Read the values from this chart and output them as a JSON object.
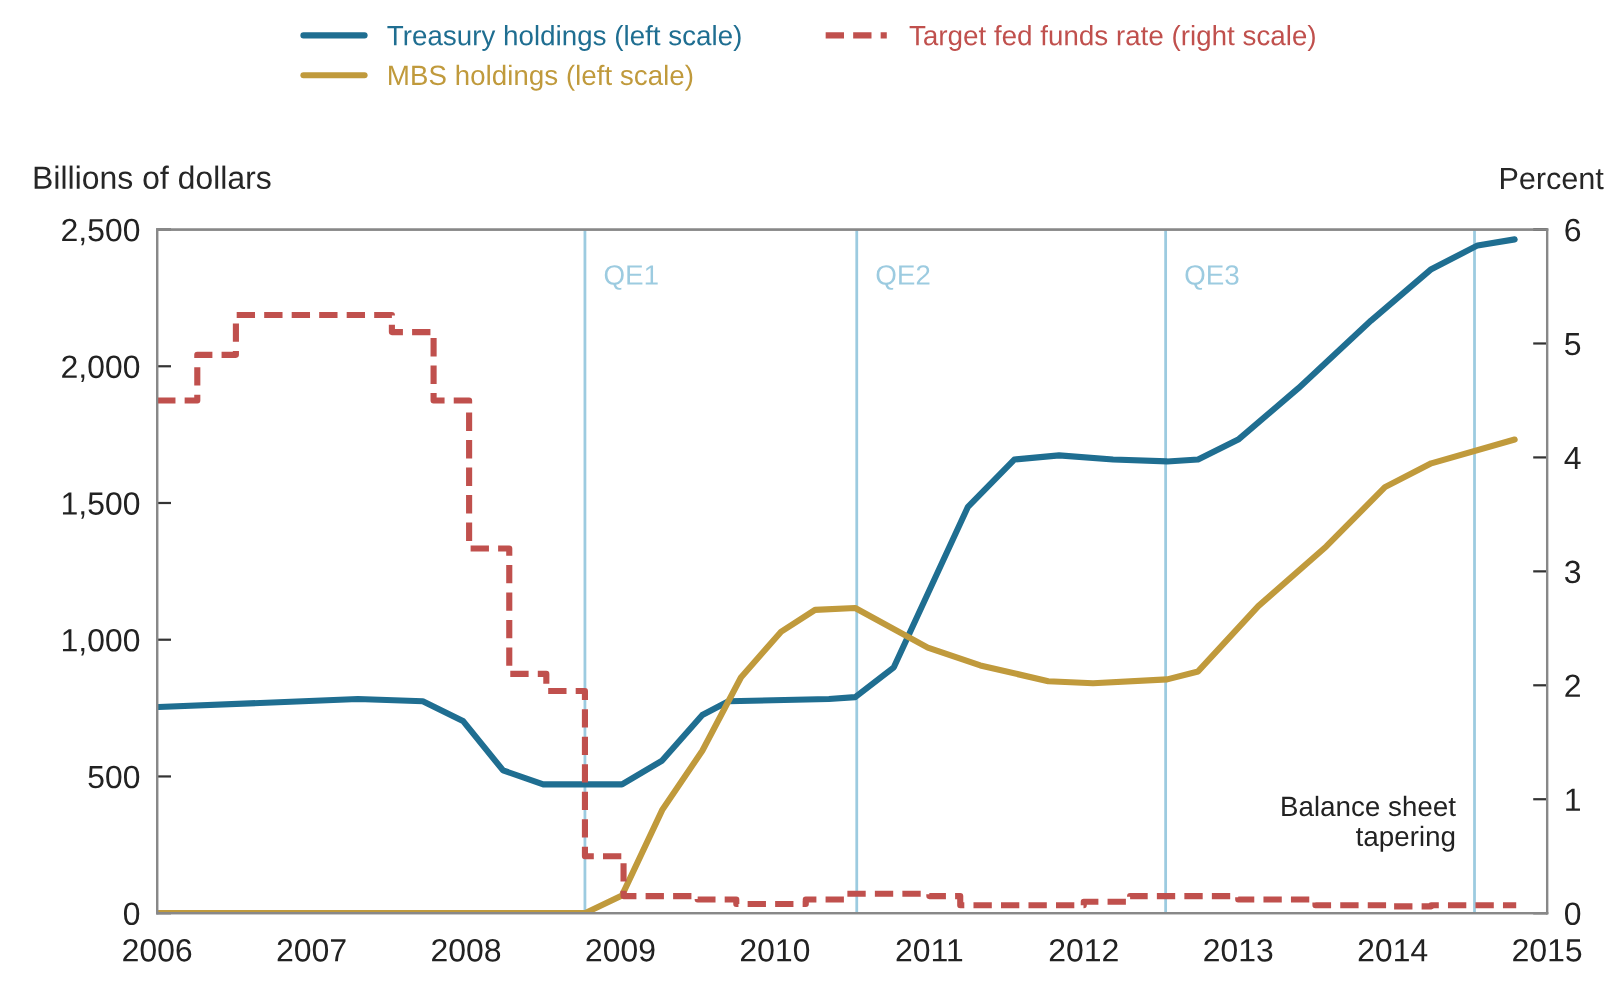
{
  "chart_data": {
    "type": "line",
    "xlabel": null,
    "ylabel": "Billions of dollars",
    "y2label": "Percent",
    "xlim": [
      2006,
      2015
    ],
    "xticks": [
      2006,
      2007,
      2008,
      2009,
      2010,
      2011,
      2012,
      2013,
      2014,
      2015
    ],
    "ylim": [
      0,
      2500
    ],
    "yticks": [
      {
        "value": 0,
        "label": "0"
      },
      {
        "value": 500,
        "label": "500"
      },
      {
        "value": 1000,
        "label": "1,000"
      },
      {
        "value": 1500,
        "label": "1,500"
      },
      {
        "value": 2000,
        "label": "2,000"
      },
      {
        "value": 2500,
        "label": "2,500"
      }
    ],
    "y2lim": [
      0,
      6
    ],
    "y2ticks": [
      0,
      1,
      2,
      3,
      4,
      5,
      6
    ],
    "grid": false,
    "legend": "top",
    "series": [
      {
        "name": "Treasury holdings (left scale)",
        "color": "#1f6e91",
        "line_style": "solid",
        "x": [
          2006.01,
          2007.3,
          2007.72,
          2007.98,
          2008.24,
          2008.5,
          2009.01,
          2009.27,
          2009.53,
          2009.7,
          2010.35,
          2010.52,
          2010.77,
          2011.25,
          2011.55,
          2011.84,
          2012.19,
          2012.54,
          2012.74,
          2013.0,
          2013.39,
          2013.86,
          2014.25,
          2014.55,
          2014.79
        ],
        "values": [
          754,
          783,
          775,
          703,
          522,
          471,
          471,
          558,
          725,
          775,
          783,
          790,
          899,
          1486,
          1659,
          1674,
          1659,
          1652,
          1659,
          1732,
          1920,
          2167,
          2355,
          2442,
          2464
        ]
      },
      {
        "name": "MBS holdings (left scale)",
        "color": "#c09a3c",
        "line_style": "solid",
        "x": [
          2006.01,
          2008.77,
          2009.01,
          2009.27,
          2009.53,
          2009.78,
          2010.04,
          2010.26,
          2010.52,
          2010.99,
          2011.33,
          2011.77,
          2012.06,
          2012.54,
          2012.74,
          2013.13,
          2013.57,
          2013.95,
          2014.25,
          2014.79
        ],
        "values": [
          0,
          0,
          65,
          377,
          594,
          862,
          1029,
          1109,
          1116,
          971,
          906,
          848,
          841,
          855,
          884,
          1123,
          1341,
          1558,
          1645,
          1732
        ]
      },
      {
        "name": "Target fed funds rate (right scale)",
        "type": "step",
        "axis": "y2",
        "color": "#c0504d",
        "line_style": "dashed",
        "x": [
          2006.0,
          2006.26,
          2006.51,
          2007.52,
          2007.79,
          2008.02,
          2008.28,
          2008.52,
          2008.77,
          2009.02,
          2009.5,
          2009.75,
          2010.2,
          2010.45,
          2011.0,
          2011.2,
          2012.0,
          2012.3,
          2013.0,
          2013.5,
          2014.0,
          2014.25,
          2014.8
        ],
        "values": [
          4.5,
          4.9,
          5.25,
          5.1,
          4.5,
          3.2,
          2.1,
          1.95,
          0.5,
          0.15,
          0.12,
          0.08,
          0.12,
          0.17,
          0.15,
          0.07,
          0.1,
          0.15,
          0.12,
          0.07,
          0.06,
          0.07,
          0.07
        ]
      }
    ],
    "ref_lines": [
      {
        "axis": "x",
        "value": 2008.77,
        "label": "QE1",
        "color": "#9ccbe0"
      },
      {
        "axis": "x",
        "value": 2010.53,
        "label": "QE2",
        "color": "#9ccbe0"
      },
      {
        "axis": "x",
        "value": 2012.53,
        "label": "QE3",
        "color": "#9ccbe0"
      },
      {
        "axis": "x",
        "value": 2014.53,
        "label": "Balance sheet\ntapering",
        "color": "#9ccbe0"
      }
    ]
  }
}
